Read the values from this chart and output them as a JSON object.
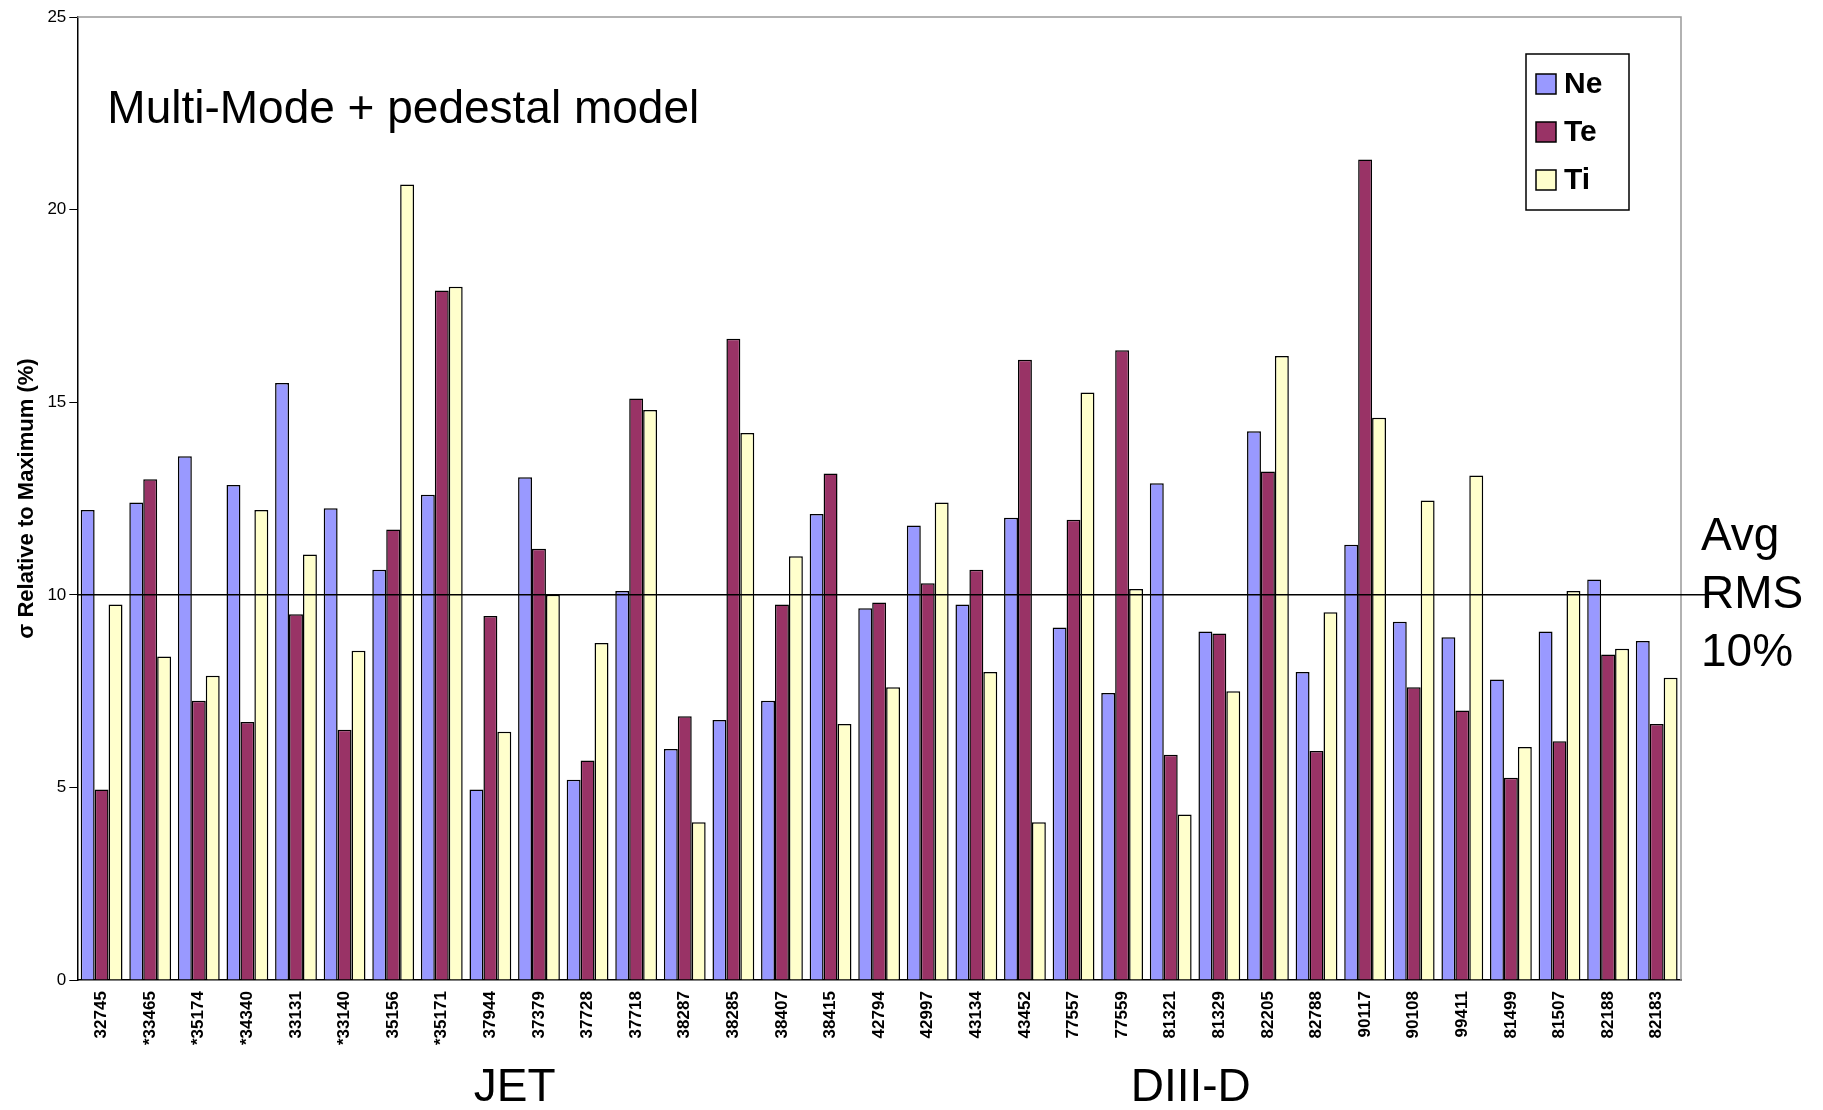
{
  "chart_data": {
    "type": "bar",
    "ylabel": "σ Relative to Maximum (%)",
    "categories": [
      "32745",
      "*33465",
      "*35174",
      "*34340",
      "33131",
      "*33140",
      "35156",
      "*35171",
      "37944",
      "37379",
      "37728",
      "37718",
      "38287",
      "38285",
      "38407",
      "38415",
      "42794",
      "42997",
      "43134",
      "43452",
      "77557",
      "77559",
      "81321",
      "81329",
      "82205",
      "82788",
      "90117",
      "90108",
      "99411",
      "81499",
      "81507",
      "82188",
      "82183"
    ],
    "series": [
      {
        "name": "Ne",
        "color": "#9999ff",
        "values": [
          12.2,
          12.4,
          13.6,
          12.85,
          15.5,
          12.25,
          10.65,
          12.6,
          4.95,
          13.05,
          5.2,
          10.1,
          6.0,
          6.75,
          7.25,
          12.1,
          9.65,
          11.8,
          9.75,
          12.0,
          9.15,
          7.45,
          12.9,
          9.05,
          14.25,
          8.0,
          11.3,
          9.3,
          8.9,
          7.8,
          9.05,
          10.4,
          8.8
        ]
      },
      {
        "name": "Te",
        "color": "#993366",
        "values": [
          4.95,
          13.0,
          7.25,
          6.7,
          9.5,
          6.5,
          11.7,
          17.9,
          9.45,
          11.2,
          5.7,
          15.1,
          6.85,
          16.65,
          9.75,
          13.15,
          9.8,
          10.3,
          10.65,
          16.1,
          11.95,
          16.35,
          5.85,
          9.0,
          13.2,
          5.95,
          21.3,
          7.6,
          7.0,
          5.25,
          6.2,
          8.45,
          6.65
        ]
      },
      {
        "name": "Ti",
        "color": "#ffffcc",
        "values": [
          9.75,
          8.4,
          7.9,
          12.2,
          11.05,
          8.55,
          20.65,
          18.0,
          6.45,
          10.0,
          8.75,
          14.8,
          4.1,
          14.2,
          11.0,
          6.65,
          7.6,
          12.4,
          8.0,
          4.1,
          15.25,
          10.15,
          4.3,
          7.5,
          16.2,
          9.55,
          14.6,
          12.45,
          13.1,
          6.05,
          10.1,
          8.6,
          7.85
        ]
      }
    ],
    "ylim": [
      0,
      25
    ],
    "yticks": [
      0,
      5,
      10,
      15,
      20,
      25
    ],
    "grid": false,
    "legend": "top right",
    "ref_lines": [
      {
        "axis": "y",
        "value": 10,
        "label": "Avg RMS 10%"
      }
    ],
    "annotations": [
      "Multi-Mode + pedestal model",
      "JET",
      "DIII-D"
    ]
  }
}
